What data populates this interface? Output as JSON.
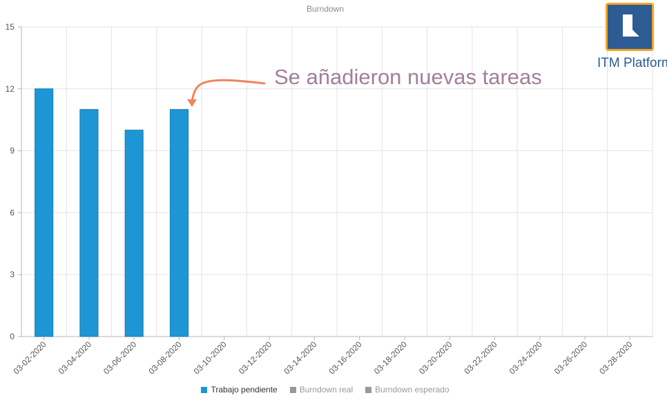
{
  "chart_data": {
    "type": "bar",
    "title": "Burndown",
    "categories": [
      "03-02-2020",
      "03-04-2020",
      "03-06-2020",
      "03-08-2020",
      "03-10-2020",
      "03-12-2020",
      "03-14-2020",
      "03-16-2020",
      "03-18-2020",
      "03-20-2020",
      "03-22-2020",
      "03-24-2020",
      "03-26-2020",
      "03-28-2020"
    ],
    "series": [
      {
        "name": "Trabajo pendiente",
        "color": "#1e96d6",
        "values": [
          12,
          11,
          10,
          11,
          null,
          null,
          null,
          null,
          null,
          null,
          null,
          null,
          null,
          null
        ]
      }
    ],
    "legend": [
      {
        "label": "Trabajo pendiente",
        "color": "#1e96d6",
        "active": true
      },
      {
        "label": "Burndown real",
        "color": "#999999",
        "active": false
      },
      {
        "label": "Burndown esperado",
        "color": "#999999",
        "active": false
      }
    ],
    "ylim": [
      0,
      15
    ],
    "yticks": [
      0,
      3,
      6,
      9,
      12,
      15
    ],
    "grid": true,
    "legend_position": "bottom",
    "xlabel": "",
    "ylabel": ""
  },
  "annotation": {
    "text": "Se añadieron nuevas tareas",
    "color": "#a27f9a",
    "arrow_color": "#f0845a"
  },
  "logo": {
    "text_bold": "ITM",
    "text_regular": "Platform",
    "frame_color": "#f7a21b",
    "fill_color": "#2d5b93"
  }
}
